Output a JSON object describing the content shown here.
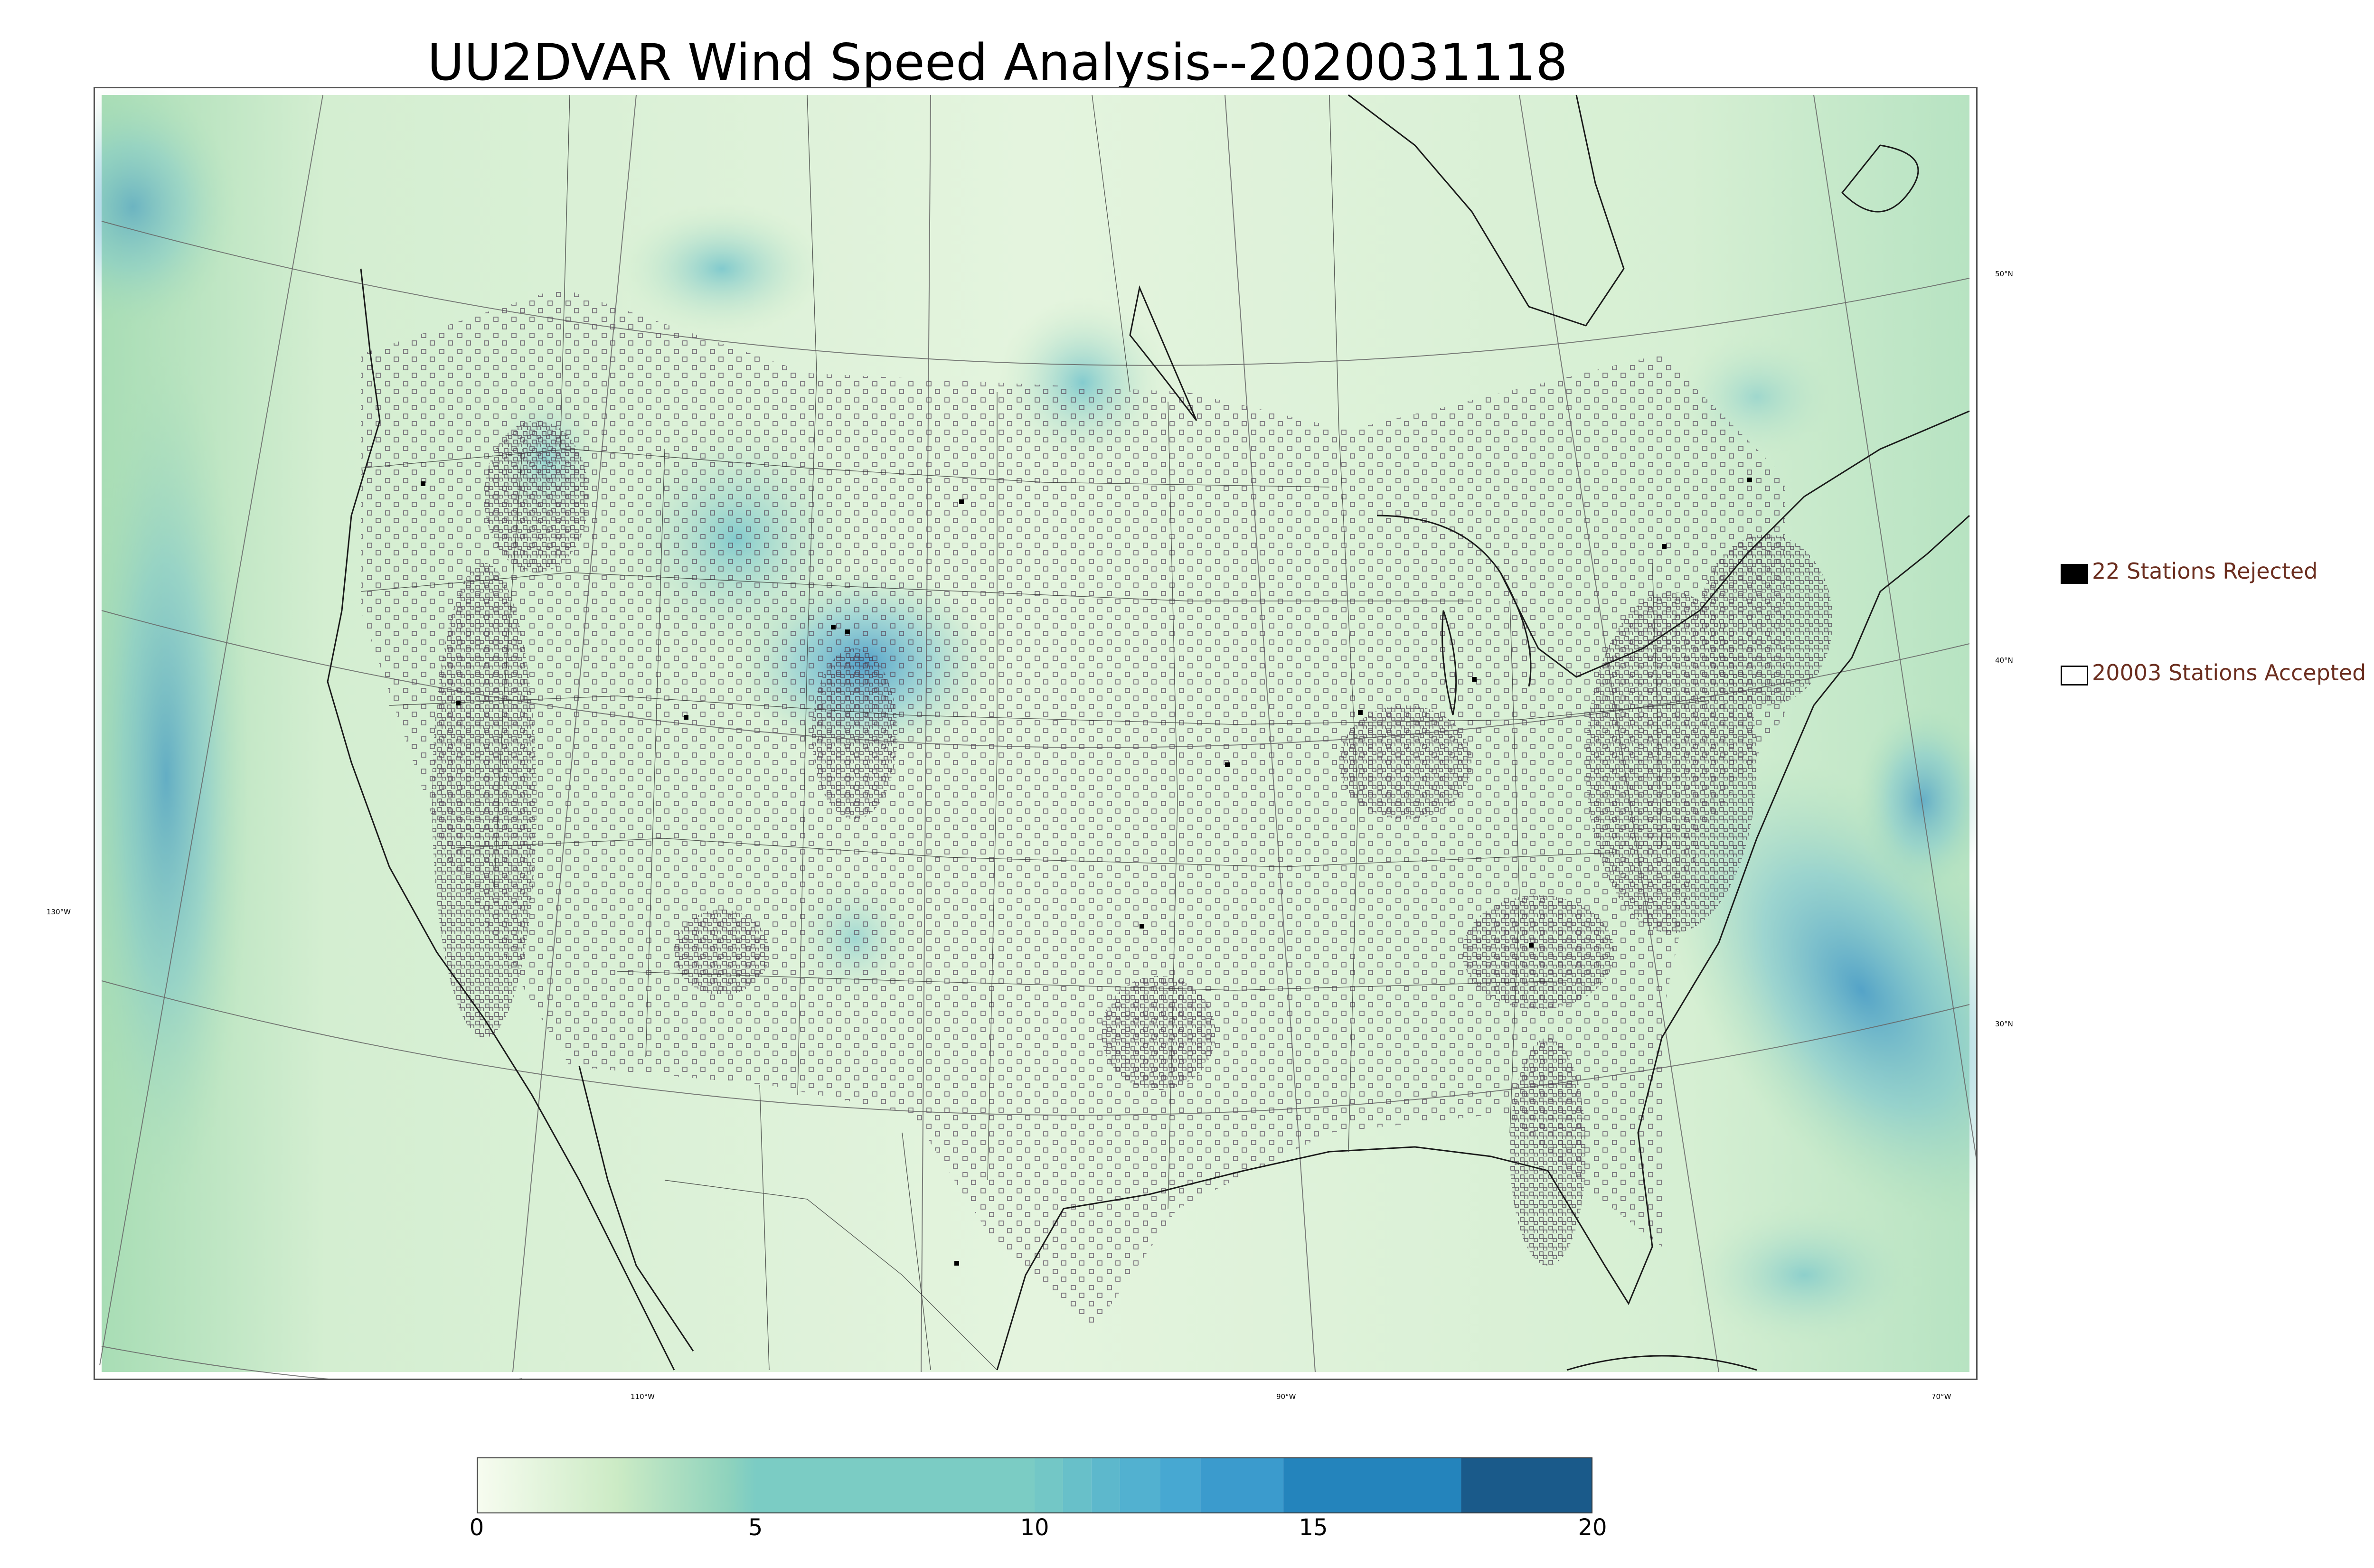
{
  "title": "UU2DVAR Wind Speed Analysis--2020031118",
  "map": {
    "type": "wind-speed-analysis-map",
    "region": "Contiguous United States",
    "lon_labels": [
      "130°W",
      "110°W",
      "90°W",
      "70°W"
    ],
    "lat_labels": [
      "50°N",
      "40°N",
      "30°N"
    ]
  },
  "legend": {
    "rejected_label": "22 Stations Rejected",
    "accepted_label": "20003 Stations Accepted",
    "rejected_color": "#000000",
    "accepted_color": "#ffffff"
  },
  "colorbar": {
    "ticks": [
      "0",
      "5",
      "10",
      "15",
      "20"
    ],
    "min": 0,
    "max": 20,
    "colors": [
      "#f7fcf0",
      "#e0f3db",
      "#ccebc5",
      "#a8ddb5",
      "#7bccc4",
      "#4eb3d3",
      "#2b8cbe",
      "#0868ac",
      "#1a5a8a"
    ]
  }
}
